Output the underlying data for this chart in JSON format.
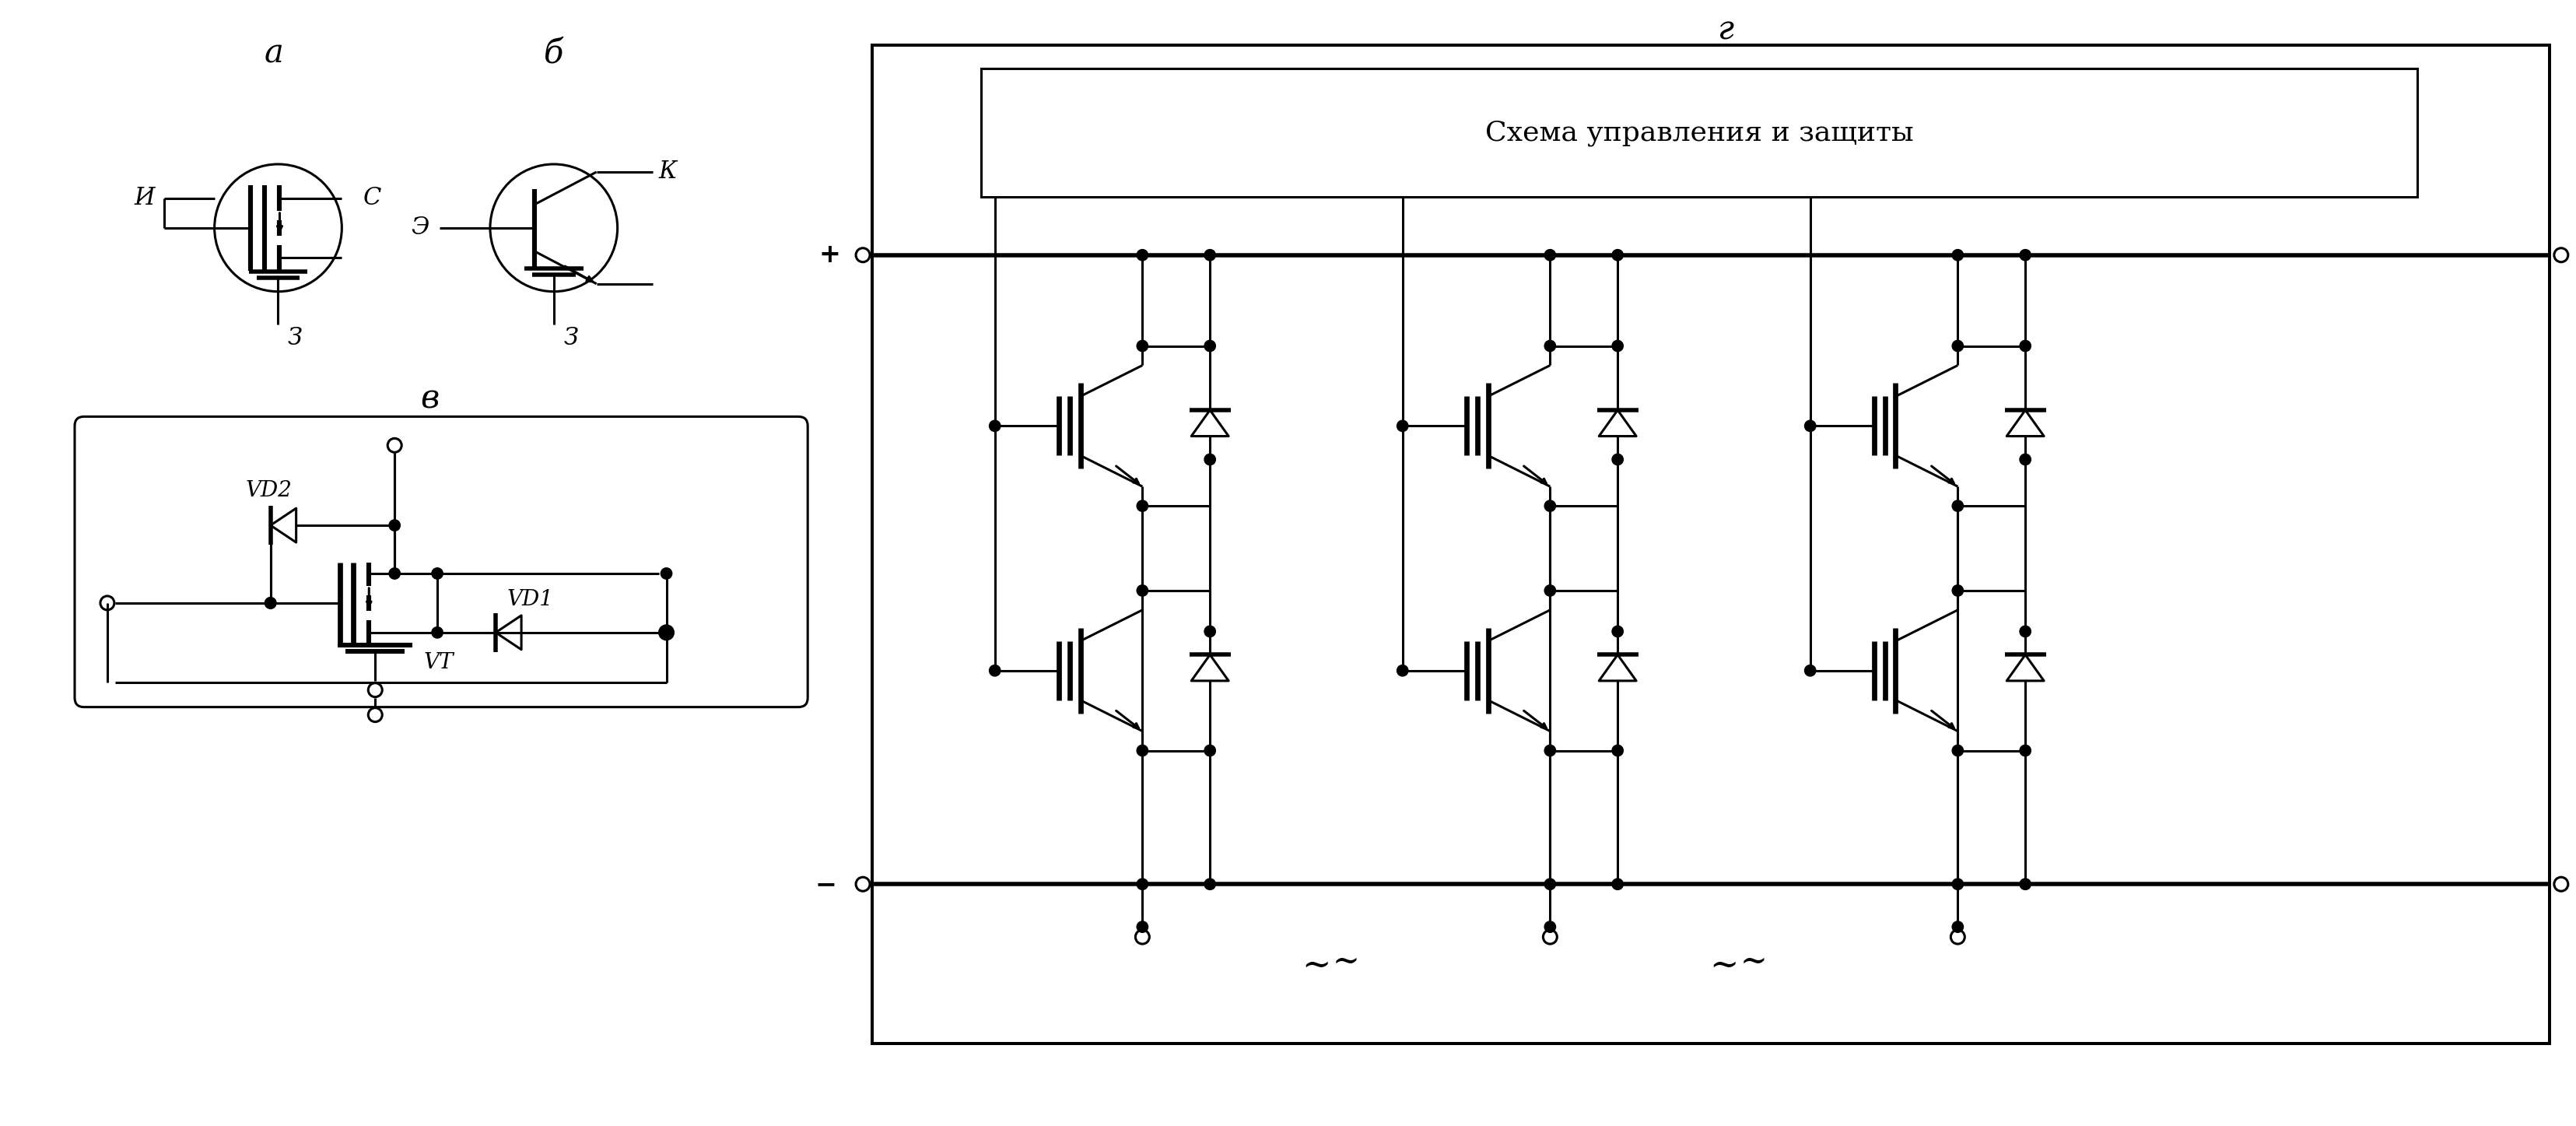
{
  "title_a": "а",
  "title_b": "б",
  "title_v": "в",
  "title_g": "г",
  "label_И": "И",
  "label_С": "С",
  "label_З": "З",
  "label_Э": "Э",
  "label_К": "К",
  "label_VD1": "VD1",
  "label_VD2": "VD2",
  "label_VT": "VT",
  "label_plus": "+",
  "label_minus": "−",
  "label_box": "Схема управления и защиты",
  "line_color": "#000000",
  "bg_color": "#ffffff",
  "lw": 2.2
}
